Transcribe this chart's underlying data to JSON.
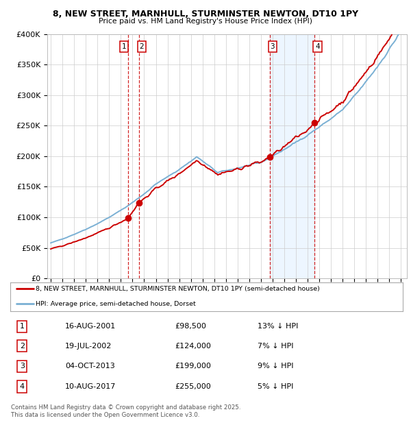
{
  "title": "8, NEW STREET, MARNHULL, STURMINSTER NEWTON, DT10 1PY",
  "subtitle": "Price paid vs. HM Land Registry's House Price Index (HPI)",
  "ylim": [
    0,
    400000
  ],
  "yticks": [
    0,
    50000,
    100000,
    150000,
    200000,
    250000,
    300000,
    350000,
    400000
  ],
  "xlim_start": 1994.7,
  "xlim_end": 2025.5,
  "sale_dates_num": [
    2001.625,
    2002.542,
    2013.75,
    2017.608
  ],
  "sale_prices": [
    98500,
    124000,
    199000,
    255000
  ],
  "vline1_x": 2001.625,
  "vline2_x": 2002.542,
  "vline3_x": 2013.75,
  "vline4_x": 2017.608,
  "shade_x1": 2013.75,
  "shade_x2": 2017.608,
  "red_line_color": "#cc0000",
  "blue_line_color": "#7ab0d4",
  "shade_color": "#ddeeff",
  "vline_color": "#cc0000",
  "grid_color": "#cccccc",
  "legend_label_red": "8, NEW STREET, MARNHULL, STURMINSTER NEWTON, DT10 1PY (semi-detached house)",
  "legend_label_blue": "HPI: Average price, semi-detached house, Dorset",
  "table_data": [
    [
      "1",
      "16-AUG-2001",
      "£98,500",
      "13% ↓ HPI"
    ],
    [
      "2",
      "19-JUL-2002",
      "£124,000",
      "7% ↓ HPI"
    ],
    [
      "3",
      "04-OCT-2013",
      "£199,000",
      "9% ↓ HPI"
    ],
    [
      "4",
      "10-AUG-2017",
      "£255,000",
      "5% ↓ HPI"
    ]
  ],
  "footnote": "Contains HM Land Registry data © Crown copyright and database right 2025.\nThis data is licensed under the Open Government Licence v3.0.",
  "background_color": "#ffffff",
  "hpi_base": 58000,
  "red_base": 50000,
  "xtick_years": [
    1995,
    1996,
    1997,
    1998,
    1999,
    2000,
    2001,
    2002,
    2003,
    2004,
    2005,
    2006,
    2007,
    2008,
    2009,
    2010,
    2011,
    2012,
    2013,
    2014,
    2015,
    2016,
    2017,
    2018,
    2019,
    2020,
    2021,
    2022,
    2023,
    2024,
    2025
  ]
}
